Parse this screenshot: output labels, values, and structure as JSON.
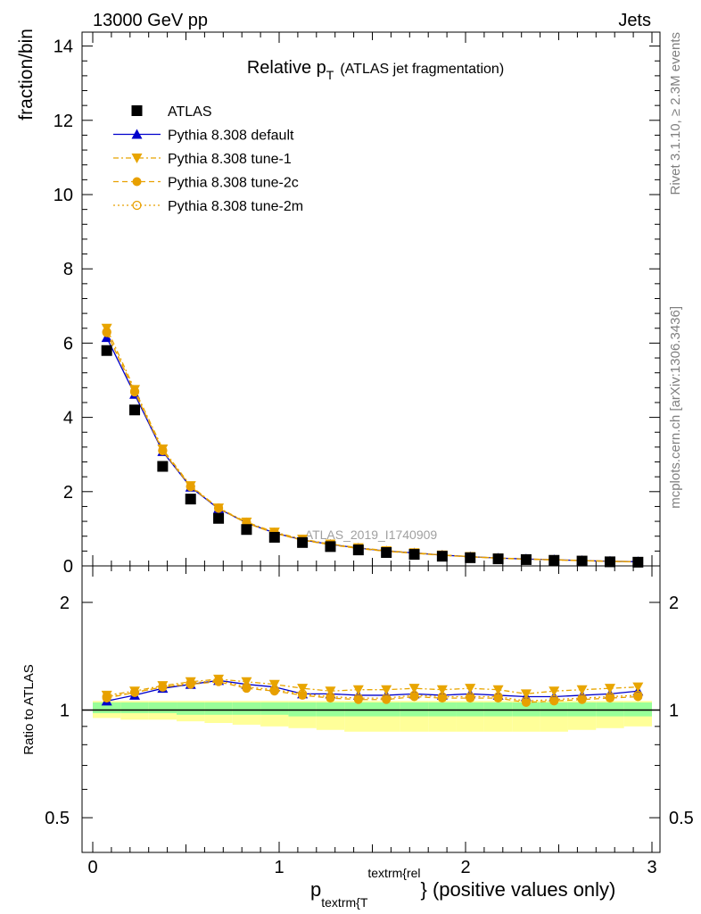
{
  "header": {
    "left": "13000 GeV pp",
    "right": "Jets"
  },
  "side_labels": {
    "rivet": "Rivet 3.1.10, ≥ 2.3M events",
    "mcplots": "mcplots.cern.ch [arXiv:1306.3436]"
  },
  "chart_data": {
    "type": "scatter",
    "title": "Relative p",
    "title_sub": "T",
    "title_suffix": "(ATLAS jet fragmentation)",
    "analysis_label": "ATLAS_2019_I1740909",
    "ylabel": "fraction/bin",
    "ratio_ylabel": "Ratio to ATLAS",
    "xlabel_parts": [
      "p",
      "textrm{T",
      "textrm{rel",
      "} (positive values only)"
    ],
    "xlim": [
      -0.07,
      3.05
    ],
    "ylim": [
      0,
      14.4
    ],
    "ratio_ylim": [
      0.4,
      2.4
    ],
    "ratio_log": true,
    "x_ticks": [
      "0",
      "1",
      "2",
      "3"
    ],
    "y_ticks": [
      "0",
      "2",
      "4",
      "6",
      "8",
      "10",
      "12",
      "14"
    ],
    "ratio_ticks": [
      "0.5",
      "1",
      "2"
    ],
    "legend_position": "top-left",
    "x": [
      0.075,
      0.225,
      0.375,
      0.525,
      0.675,
      0.825,
      0.975,
      1.125,
      1.275,
      1.425,
      1.575,
      1.725,
      1.875,
      2.025,
      2.175,
      2.325,
      2.475,
      2.625,
      2.775,
      2.925
    ],
    "x_edges": [
      0,
      0.15,
      0.3,
      0.45,
      0.6,
      0.75,
      0.9,
      1.05,
      1.2,
      1.35,
      1.5,
      1.65,
      1.8,
      1.95,
      2.1,
      2.25,
      2.4,
      2.55,
      2.7,
      2.85,
      3.0
    ],
    "series": [
      {
        "name": "ATLAS",
        "color": "#000000",
        "marker": "square",
        "values": [
          5.8,
          4.2,
          2.68,
          1.8,
          1.28,
          0.98,
          0.77,
          0.63,
          0.52,
          0.43,
          0.36,
          0.31,
          0.26,
          0.22,
          0.19,
          0.17,
          0.15,
          0.13,
          0.11,
          0.1
        ],
        "ratio": [
          1,
          1,
          1,
          1,
          1,
          1,
          1,
          1,
          1,
          1,
          1,
          1,
          1,
          1,
          1,
          1,
          1,
          1,
          1,
          1
        ]
      },
      {
        "name": "Pythia 8.308 default",
        "color": "#0000cc",
        "marker": "triangle-up",
        "line": "solid",
        "values": [
          6.15,
          4.62,
          3.08,
          2.12,
          1.54,
          1.16,
          0.89,
          0.7,
          0.58,
          0.48,
          0.4,
          0.35,
          0.29,
          0.25,
          0.21,
          0.185,
          0.165,
          0.145,
          0.125,
          0.113
        ],
        "ratio": [
          1.06,
          1.1,
          1.15,
          1.18,
          1.21,
          1.18,
          1.16,
          1.11,
          1.11,
          1.1,
          1.1,
          1.11,
          1.1,
          1.11,
          1.1,
          1.09,
          1.09,
          1.1,
          1.11,
          1.13
        ]
      },
      {
        "name": "Pythia 8.308 tune-1",
        "color": "#e8a500",
        "marker": "triangle-down",
        "line": "dashdot",
        "values": [
          6.4,
          4.75,
          3.15,
          2.16,
          1.56,
          1.18,
          0.91,
          0.72,
          0.59,
          0.49,
          0.41,
          0.355,
          0.295,
          0.252,
          0.213,
          0.188,
          0.167,
          0.147,
          0.127,
          0.115
        ],
        "ratio": [
          1.1,
          1.13,
          1.17,
          1.2,
          1.22,
          1.2,
          1.18,
          1.15,
          1.13,
          1.14,
          1.14,
          1.15,
          1.14,
          1.15,
          1.14,
          1.11,
          1.13,
          1.14,
          1.15,
          1.16
        ]
      },
      {
        "name": "Pythia 8.308 tune-2c",
        "color": "#e8a000",
        "marker": "circle",
        "line": "dashed",
        "values": [
          6.28,
          4.68,
          3.1,
          2.13,
          1.55,
          1.15,
          0.88,
          0.69,
          0.57,
          0.47,
          0.39,
          0.34,
          0.285,
          0.243,
          0.205,
          0.18,
          0.16,
          0.14,
          0.12,
          0.11
        ],
        "ratio": [
          1.08,
          1.12,
          1.16,
          1.18,
          1.2,
          1.15,
          1.13,
          1.1,
          1.08,
          1.07,
          1.07,
          1.09,
          1.08,
          1.08,
          1.08,
          1.05,
          1.06,
          1.07,
          1.08,
          1.09
        ]
      },
      {
        "name": "Pythia 8.308 tune-2m",
        "color": "#e8a000",
        "marker": "circle-open",
        "line": "dotted",
        "values": [
          6.3,
          4.7,
          3.11,
          2.14,
          1.56,
          1.16,
          0.89,
          0.7,
          0.575,
          0.475,
          0.395,
          0.345,
          0.29,
          0.246,
          0.208,
          0.182,
          0.162,
          0.142,
          0.122,
          0.111
        ],
        "ratio": [
          1.09,
          1.12,
          1.16,
          1.19,
          1.21,
          1.16,
          1.14,
          1.11,
          1.09,
          1.08,
          1.08,
          1.1,
          1.09,
          1.09,
          1.09,
          1.06,
          1.07,
          1.08,
          1.09,
          1.1
        ]
      }
    ],
    "uncertainty_bands": {
      "stat_lo": [
        0.98,
        0.98,
        0.98,
        0.97,
        0.97,
        0.97,
        0.97,
        0.96,
        0.96,
        0.96,
        0.96,
        0.96,
        0.96,
        0.96,
        0.96,
        0.96,
        0.96,
        0.96,
        0.96,
        0.96
      ],
      "stat_hi": [
        1.05,
        1.05,
        1.05,
        1.05,
        1.05,
        1.05,
        1.05,
        1.05,
        1.05,
        1.05,
        1.05,
        1.05,
        1.05,
        1.05,
        1.05,
        1.05,
        1.05,
        1.05,
        1.05,
        1.05
      ],
      "total_lo": [
        0.95,
        0.94,
        0.94,
        0.93,
        0.92,
        0.91,
        0.9,
        0.89,
        0.88,
        0.87,
        0.87,
        0.87,
        0.87,
        0.87,
        0.87,
        0.87,
        0.87,
        0.88,
        0.89,
        0.9
      ],
      "total_hi": [
        1.06,
        1.06,
        1.06,
        1.06,
        1.06,
        1.06,
        1.06,
        1.06,
        1.06,
        1.06,
        1.06,
        1.06,
        1.06,
        1.06,
        1.06,
        1.06,
        1.06,
        1.06,
        1.06,
        1.06
      ],
      "stat_color": "#99ff99",
      "total_color": "#ffff99"
    }
  }
}
